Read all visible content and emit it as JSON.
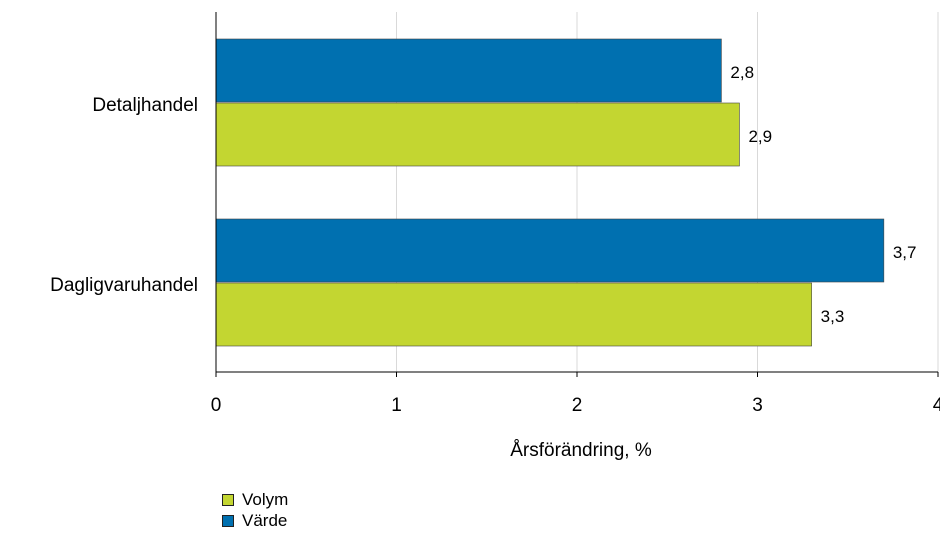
{
  "chart_data": {
    "type": "bar",
    "orientation": "horizontal",
    "categories": [
      "Detaljhandel",
      "Dagligvaruhandel"
    ],
    "series": [
      {
        "name": "Värde",
        "values": [
          2.8,
          3.7
        ],
        "color": "#0070b0"
      },
      {
        "name": "Volym",
        "values": [
          2.9,
          3.3
        ],
        "color": "#c3d631"
      }
    ],
    "data_labels": [
      [
        "2,8",
        "3,7"
      ],
      [
        "2,9",
        "3,3"
      ]
    ],
    "xlabel": "Årsförändring, %",
    "xlim": [
      0,
      4
    ],
    "x_ticks": [
      {
        "value": 0,
        "label": "0"
      },
      {
        "value": 1,
        "label": "1"
      },
      {
        "value": 2,
        "label": "2"
      },
      {
        "value": 3,
        "label": "3"
      },
      {
        "value": 4,
        "label": "4"
      }
    ],
    "grid": "vertical",
    "legend_position": "bottom-left"
  },
  "legend": [
    {
      "label": "Volym",
      "color": "#c3d631"
    },
    {
      "label": "Värde",
      "color": "#0070b0"
    }
  ]
}
